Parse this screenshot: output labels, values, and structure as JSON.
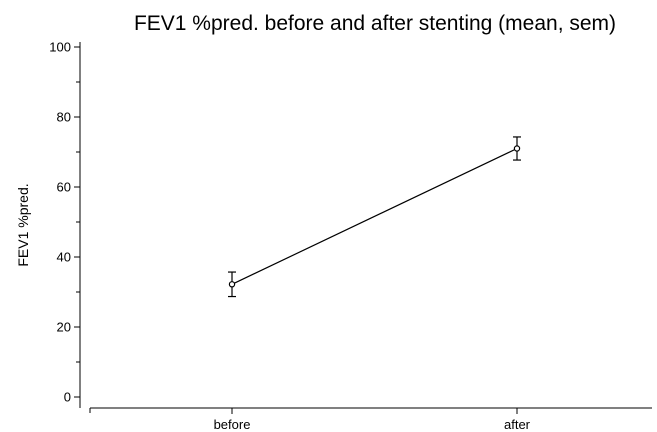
{
  "chart_data": {
    "type": "line",
    "title": "FEV1 %pred. before and after stenting (mean, sem)",
    "xlabel": "",
    "ylabel": "FEV1 %pred.",
    "categories": [
      "before",
      "after"
    ],
    "series": [
      {
        "values": [
          32.2,
          71.0
        ],
        "error": [
          3.5,
          3.3
        ]
      }
    ],
    "ylim": [
      0,
      100
    ],
    "yticks_major": [
      0,
      20,
      40,
      60,
      80,
      100
    ],
    "yticks_minor": [
      10,
      30,
      50,
      70,
      90
    ],
    "grid": false,
    "marker": "hollow-circle",
    "color": "#000000"
  }
}
